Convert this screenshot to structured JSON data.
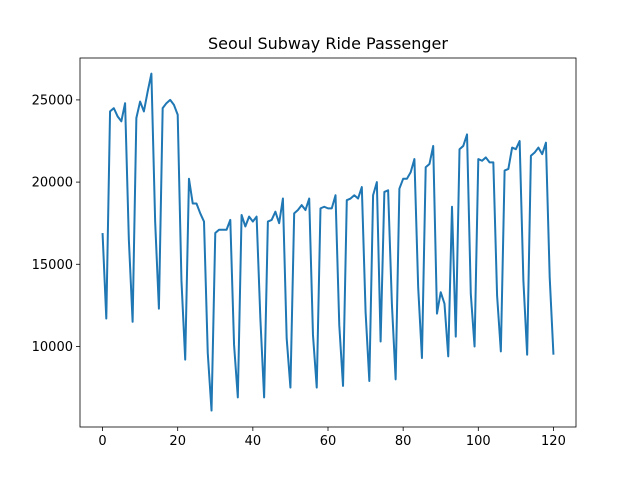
{
  "chart_data": {
    "type": "line",
    "title": "Seoul Subway Ride Passenger",
    "xlabel": "",
    "ylabel": "",
    "xlim": [
      -6,
      126
    ],
    "ylim": [
      5100,
      27550
    ],
    "x_ticks": [
      0,
      20,
      40,
      60,
      80,
      100,
      120
    ],
    "y_ticks": [
      10000,
      15000,
      20000,
      25000
    ],
    "grid": false,
    "line_color": "#1f77b4",
    "x": [
      0,
      1,
      2,
      3,
      4,
      5,
      6,
      7,
      8,
      9,
      10,
      11,
      12,
      13,
      14,
      15,
      16,
      17,
      18,
      19,
      20,
      21,
      22,
      23,
      24,
      25,
      26,
      27,
      28,
      29,
      30,
      31,
      32,
      33,
      34,
      35,
      36,
      37,
      38,
      39,
      40,
      41,
      42,
      43,
      44,
      45,
      46,
      47,
      48,
      49,
      50,
      51,
      52,
      53,
      54,
      55,
      56,
      57,
      58,
      59,
      60,
      61,
      62,
      63,
      64,
      65,
      66,
      67,
      68,
      69,
      70,
      71,
      72,
      73,
      74,
      75,
      76,
      77,
      78,
      79,
      80,
      81,
      82,
      83,
      84,
      85,
      86,
      87,
      88,
      89,
      90,
      91,
      92,
      93,
      94,
      95,
      96,
      97,
      98,
      99,
      100,
      101,
      102,
      103,
      104,
      105,
      106,
      107,
      108,
      109,
      110,
      111,
      112,
      113,
      114,
      115,
      116,
      117,
      118,
      119,
      120
    ],
    "values": [
      16900,
      11700,
      24300,
      24500,
      24000,
      23700,
      24800,
      16500,
      11500,
      23900,
      24900,
      24300,
      25500,
      26600,
      17600,
      12300,
      24500,
      24800,
      25000,
      24700,
      24100,
      14000,
      9200,
      20200,
      18700,
      18700,
      18100,
      17600,
      9600,
      6100,
      16900,
      17100,
      17100,
      17100,
      17700,
      10100,
      6900,
      18000,
      17300,
      17900,
      17600,
      17900,
      11700,
      6900,
      17600,
      17700,
      18200,
      17500,
      19000,
      10500,
      7500,
      18100,
      18300,
      18600,
      18300,
      19000,
      10700,
      7500,
      18400,
      18500,
      18400,
      18400,
      19200,
      11300,
      7600,
      18900,
      19000,
      19200,
      19000,
      19700,
      12100,
      7900,
      19200,
      20000,
      10300,
      19400,
      19500,
      12600,
      8000,
      19600,
      20200,
      20200,
      20600,
      21400,
      13600,
      9300,
      20900,
      21100,
      22200,
      12000,
      13300,
      12600,
      9400,
      18500,
      10600,
      22000,
      22200,
      22900,
      13200,
      10000,
      21400,
      21300,
      21500,
      21200,
      21200,
      13100,
      9700,
      20700,
      20800,
      22100,
      22000,
      22500,
      14000,
      9500,
      21600,
      21800,
      22100,
      21700,
      22400,
      14200,
      9500
    ]
  }
}
